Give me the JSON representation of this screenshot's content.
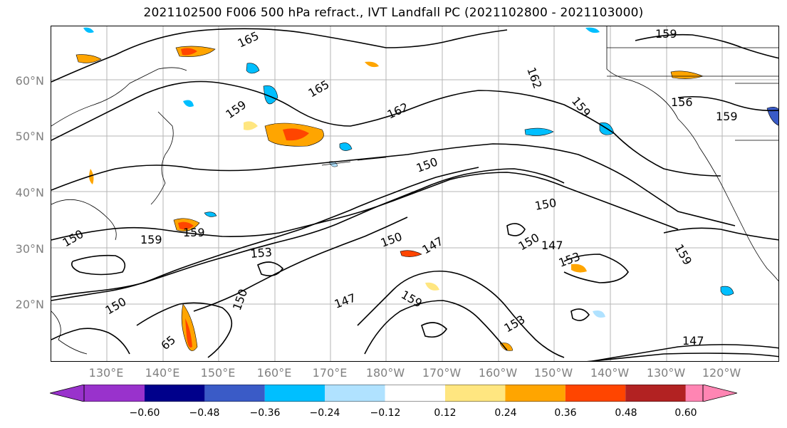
{
  "title": "2021102500 F006 500 hPa refract., IVT Landfall PC (2021102800 - 2021103000)",
  "lat_labels": [
    "60°N",
    "50°N",
    "40°N",
    "30°N",
    "20°N"
  ],
  "lon_labels": [
    "130°E",
    "140°E",
    "150°E",
    "160°E",
    "170°E",
    "180°W",
    "170°W",
    "160°W",
    "150°W",
    "140°W",
    "130°W",
    "120°W"
  ],
  "contour_labels": [
    "165",
    "159",
    "165",
    "162",
    "162",
    "159",
    "159",
    "156",
    "159",
    "150",
    "150",
    "150",
    "150",
    "150",
    "159",
    "159",
    "153",
    "147",
    "153",
    "147",
    "147",
    "159",
    "153",
    "159",
    "147",
    "150",
    "65",
    "150"
  ],
  "colorbar": {
    "ticks": [
      "−0.60",
      "−0.48",
      "−0.36",
      "−0.24",
      "−0.12",
      "0.12",
      "0.24",
      "0.36",
      "0.48",
      "0.60"
    ],
    "colors": [
      "#9932cc",
      "#00008b",
      "#3a5bc7",
      "#00bfff",
      "#b0e2ff",
      "#ffffff",
      "#ffe680",
      "#ffa500",
      "#ff4500",
      "#b22222",
      "#ff85b3"
    ]
  },
  "shading_colors": {
    "positive_low": "#ffe680",
    "positive_mid": "#ffa500",
    "positive_high": "#ff4500",
    "negative_low": "#b0e2ff",
    "negative_mid": "#00bfff",
    "negative_high": "#3a5bc7"
  }
}
